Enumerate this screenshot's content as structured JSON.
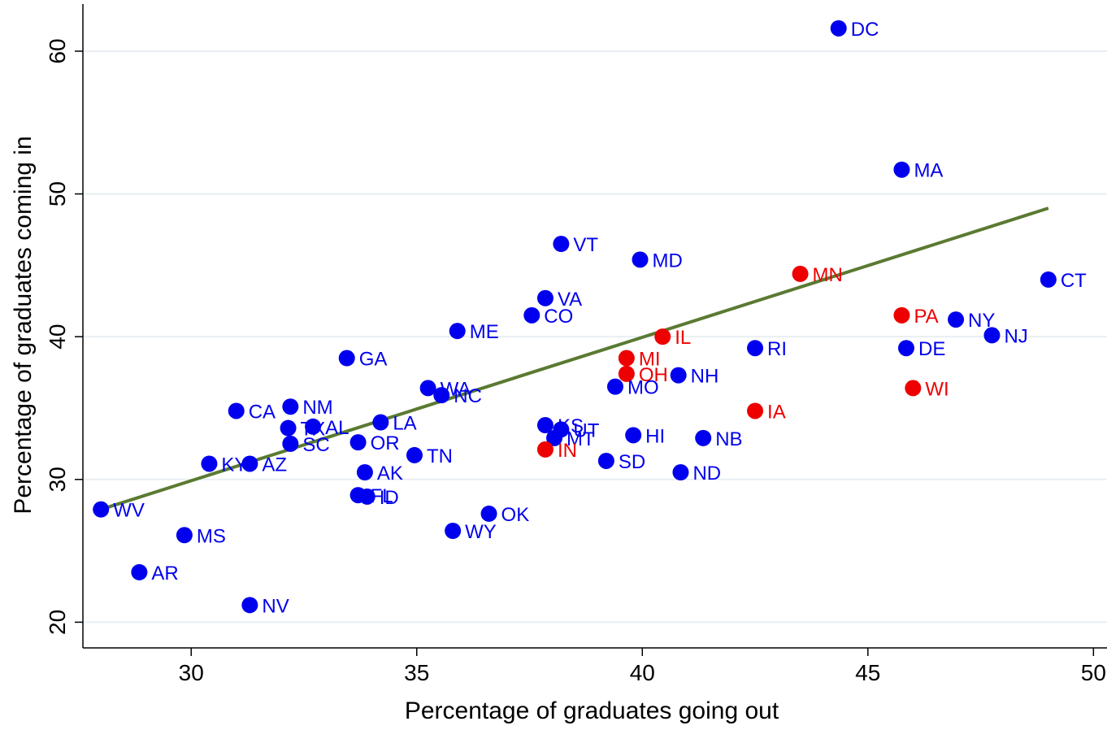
{
  "chart_data": {
    "type": "scatter",
    "title": "",
    "xlabel": "Percentage of graduates going out",
    "ylabel": "Percentage of graduates coming in",
    "xlim": [
      27.6,
      50.3
    ],
    "ylim": [
      18.2,
      63.3
    ],
    "xticks": [
      "30",
      "35",
      "40",
      "45",
      "50"
    ],
    "yticks": [
      "20",
      "30",
      "40",
      "50",
      "60"
    ],
    "grid": true,
    "legend": "none",
    "colors": {
      "default": "#0000ee",
      "highlight": "#ee0000",
      "fit": "#5a7a32"
    },
    "fit_line": {
      "x": [
        28.0,
        49.0
      ],
      "y": [
        27.9,
        49.0
      ]
    },
    "points": [
      {
        "label": "DC",
        "x": 44.35,
        "y": 61.6,
        "group": "default"
      },
      {
        "label": "MA",
        "x": 45.75,
        "y": 51.7,
        "group": "default"
      },
      {
        "label": "VT",
        "x": 38.2,
        "y": 46.5,
        "group": "default"
      },
      {
        "label": "MD",
        "x": 39.95,
        "y": 45.4,
        "group": "default"
      },
      {
        "label": "MN",
        "x": 43.5,
        "y": 44.4,
        "group": "highlight"
      },
      {
        "label": "CT",
        "x": 49.0,
        "y": 44.0,
        "group": "default"
      },
      {
        "label": "VA",
        "x": 37.85,
        "y": 42.7,
        "group": "default"
      },
      {
        "label": "CO",
        "x": 37.55,
        "y": 41.5,
        "group": "default"
      },
      {
        "label": "PA",
        "x": 45.75,
        "y": 41.5,
        "group": "highlight"
      },
      {
        "label": "NY",
        "x": 46.95,
        "y": 41.2,
        "group": "default"
      },
      {
        "label": "ME",
        "x": 35.9,
        "y": 40.4,
        "group": "default"
      },
      {
        "label": "NJ",
        "x": 47.75,
        "y": 40.1,
        "group": "default"
      },
      {
        "label": "IL",
        "x": 40.45,
        "y": 40.0,
        "group": "highlight"
      },
      {
        "label": "RI",
        "x": 42.5,
        "y": 39.2,
        "group": "default"
      },
      {
        "label": "DE",
        "x": 45.85,
        "y": 39.2,
        "group": "default"
      },
      {
        "label": "GA",
        "x": 33.45,
        "y": 38.5,
        "group": "default"
      },
      {
        "label": "MI",
        "x": 39.65,
        "y": 38.5,
        "group": "highlight"
      },
      {
        "label": "OH",
        "x": 39.65,
        "y": 37.4,
        "group": "highlight"
      },
      {
        "label": "NH",
        "x": 40.8,
        "y": 37.3,
        "group": "default"
      },
      {
        "label": "MO",
        "x": 39.4,
        "y": 36.5,
        "group": "default"
      },
      {
        "label": "WA",
        "x": 35.25,
        "y": 36.4,
        "group": "default"
      },
      {
        "label": "WI",
        "x": 46.0,
        "y": 36.4,
        "group": "highlight"
      },
      {
        "label": "NC",
        "x": 35.55,
        "y": 35.9,
        "group": "default"
      },
      {
        "label": "NM",
        "x": 32.2,
        "y": 35.1,
        "group": "default"
      },
      {
        "label": "CA",
        "x": 31.0,
        "y": 34.8,
        "group": "default"
      },
      {
        "label": "IA",
        "x": 42.5,
        "y": 34.8,
        "group": "highlight"
      },
      {
        "label": "LA",
        "x": 34.2,
        "y": 34.0,
        "group": "default"
      },
      {
        "label": "KS",
        "x": 37.85,
        "y": 33.8,
        "group": "default"
      },
      {
        "label": "AL",
        "x": 32.7,
        "y": 33.7,
        "group": "default"
      },
      {
        "label": "TX",
        "x": 32.15,
        "y": 33.6,
        "group": "default"
      },
      {
        "label": "UT",
        "x": 38.2,
        "y": 33.5,
        "group": "default"
      },
      {
        "label": "HI",
        "x": 39.8,
        "y": 33.1,
        "group": "default"
      },
      {
        "label": "MT",
        "x": 38.05,
        "y": 32.9,
        "group": "default"
      },
      {
        "label": "NB",
        "x": 41.35,
        "y": 32.9,
        "group": "default"
      },
      {
        "label": "OR",
        "x": 33.7,
        "y": 32.6,
        "group": "default"
      },
      {
        "label": "SC",
        "x": 32.2,
        "y": 32.5,
        "group": "default"
      },
      {
        "label": "IN",
        "x": 37.85,
        "y": 32.1,
        "group": "highlight"
      },
      {
        "label": "TN",
        "x": 34.95,
        "y": 31.7,
        "group": "default"
      },
      {
        "label": "SD",
        "x": 39.2,
        "y": 31.3,
        "group": "default"
      },
      {
        "label": "KY",
        "x": 30.4,
        "y": 31.1,
        "group": "default"
      },
      {
        "label": "AZ",
        "x": 31.3,
        "y": 31.1,
        "group": "default"
      },
      {
        "label": "AK",
        "x": 33.85,
        "y": 30.5,
        "group": "default"
      },
      {
        "label": "ND",
        "x": 40.85,
        "y": 30.5,
        "group": "default"
      },
      {
        "label": "FL",
        "x": 33.7,
        "y": 28.9,
        "group": "default"
      },
      {
        "label": "ID",
        "x": 33.9,
        "y": 28.8,
        "group": "default"
      },
      {
        "label": "WV",
        "x": 28.0,
        "y": 27.9,
        "group": "default"
      },
      {
        "label": "OK",
        "x": 36.6,
        "y": 27.6,
        "group": "default"
      },
      {
        "label": "WY",
        "x": 35.8,
        "y": 26.4,
        "group": "default"
      },
      {
        "label": "MS",
        "x": 29.85,
        "y": 26.1,
        "group": "default"
      },
      {
        "label": "AR",
        "x": 28.85,
        "y": 23.5,
        "group": "default"
      },
      {
        "label": "NV",
        "x": 31.3,
        "y": 21.2,
        "group": "default"
      }
    ]
  }
}
